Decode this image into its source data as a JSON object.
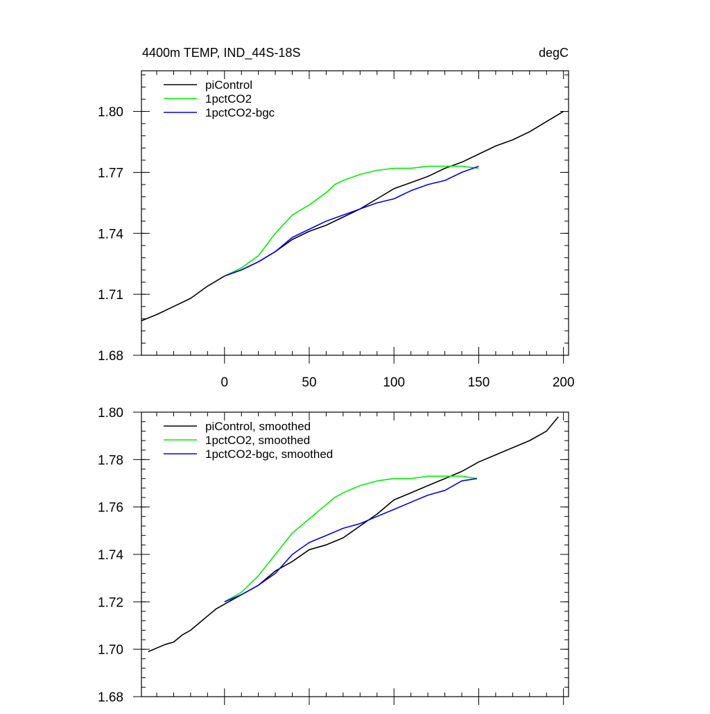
{
  "chart_data": [
    {
      "type": "line",
      "title": "4400m TEMP, IND_44S-18S",
      "units": "degC",
      "xlabel": "",
      "ylabel": "",
      "xlim": [
        -49,
        203
      ],
      "ylim": [
        1.68,
        1.82
      ],
      "xticks": [
        0,
        50,
        100,
        150,
        200
      ],
      "xtick_labels": [
        "0",
        "50",
        "100",
        "150",
        "200"
      ],
      "yticks": [
        1.68,
        1.71,
        1.74,
        1.77,
        1.8
      ],
      "ytick_labels": [
        "1.68",
        "1.71",
        "1.74",
        "1.77",
        "1.80"
      ],
      "legend_position": "top-left",
      "grid": false,
      "series": [
        {
          "name": "piControl",
          "color": "#000000",
          "x": [
            -49,
            -40,
            -30,
            -20,
            -10,
            0,
            10,
            20,
            30,
            40,
            50,
            60,
            70,
            80,
            90,
            100,
            110,
            120,
            130,
            140,
            150,
            160,
            170,
            180,
            190,
            200
          ],
          "y": [
            1.697,
            1.7,
            1.704,
            1.708,
            1.714,
            1.719,
            1.722,
            1.726,
            1.731,
            1.737,
            1.741,
            1.744,
            1.748,
            1.752,
            1.757,
            1.762,
            1.765,
            1.768,
            1.772,
            1.775,
            1.779,
            1.783,
            1.786,
            1.79,
            1.795,
            1.8
          ]
        },
        {
          "name": "1pctCO2",
          "color": "#00ee00",
          "x": [
            0,
            10,
            20,
            30,
            40,
            50,
            60,
            65,
            70,
            80,
            90,
            100,
            110,
            120,
            130,
            140,
            150
          ],
          "y": [
            1.719,
            1.723,
            1.729,
            1.74,
            1.749,
            1.754,
            1.76,
            1.764,
            1.766,
            1.769,
            1.771,
            1.772,
            1.772,
            1.773,
            1.773,
            1.773,
            1.772
          ]
        },
        {
          "name": "1pctCO2-bgc",
          "color": "#0000ee",
          "x": [
            0,
            10,
            20,
            30,
            40,
            50,
            60,
            70,
            80,
            90,
            100,
            110,
            120,
            130,
            140,
            150
          ],
          "y": [
            1.719,
            1.722,
            1.726,
            1.731,
            1.738,
            1.742,
            1.746,
            1.749,
            1.752,
            1.755,
            1.757,
            1.761,
            1.764,
            1.766,
            1.77,
            1.773
          ]
        }
      ]
    },
    {
      "type": "line",
      "title": "",
      "xlabel": "",
      "ylabel": "",
      "xlim": [
        -49,
        203
      ],
      "ylim": [
        1.68,
        1.8
      ],
      "xticks": [
        0,
        50,
        100,
        150,
        200
      ],
      "yticks": [
        1.68,
        1.7,
        1.72,
        1.74,
        1.76,
        1.78,
        1.8
      ],
      "ytick_labels": [
        "1.68",
        "1.70",
        "1.72",
        "1.74",
        "1.76",
        "1.78",
        "1.80"
      ],
      "legend_position": "top-left",
      "grid": false,
      "series": [
        {
          "name": "piControl, smoothed",
          "color": "#000000",
          "x": [
            -45,
            -35,
            -30,
            -25,
            -20,
            -15,
            -10,
            -5,
            0,
            10,
            20,
            30,
            40,
            50,
            60,
            70,
            80,
            90,
            100,
            110,
            120,
            130,
            140,
            150,
            160,
            170,
            180,
            190,
            197
          ],
          "y": [
            1.699,
            1.702,
            1.703,
            1.706,
            1.708,
            1.711,
            1.714,
            1.717,
            1.719,
            1.723,
            1.727,
            1.733,
            1.737,
            1.742,
            1.744,
            1.747,
            1.752,
            1.757,
            1.763,
            1.766,
            1.769,
            1.772,
            1.775,
            1.779,
            1.782,
            1.785,
            1.788,
            1.792,
            1.798
          ]
        },
        {
          "name": "1pctCO2, smoothed",
          "color": "#00ee00",
          "x": [
            0,
            10,
            20,
            30,
            40,
            50,
            60,
            65,
            70,
            80,
            90,
            100,
            110,
            120,
            130,
            140,
            149
          ],
          "y": [
            1.72,
            1.724,
            1.731,
            1.74,
            1.749,
            1.755,
            1.761,
            1.764,
            1.766,
            1.769,
            1.771,
            1.772,
            1.772,
            1.773,
            1.773,
            1.773,
            1.772
          ]
        },
        {
          "name": "1pctCO2-bgc, smoothed",
          "color": "#0000ee",
          "x": [
            0,
            10,
            20,
            30,
            40,
            50,
            60,
            70,
            80,
            90,
            100,
            110,
            120,
            130,
            140,
            149
          ],
          "y": [
            1.72,
            1.723,
            1.727,
            1.732,
            1.74,
            1.745,
            1.748,
            1.751,
            1.753,
            1.756,
            1.759,
            1.762,
            1.765,
            1.767,
            1.771,
            1.772
          ]
        }
      ]
    }
  ]
}
